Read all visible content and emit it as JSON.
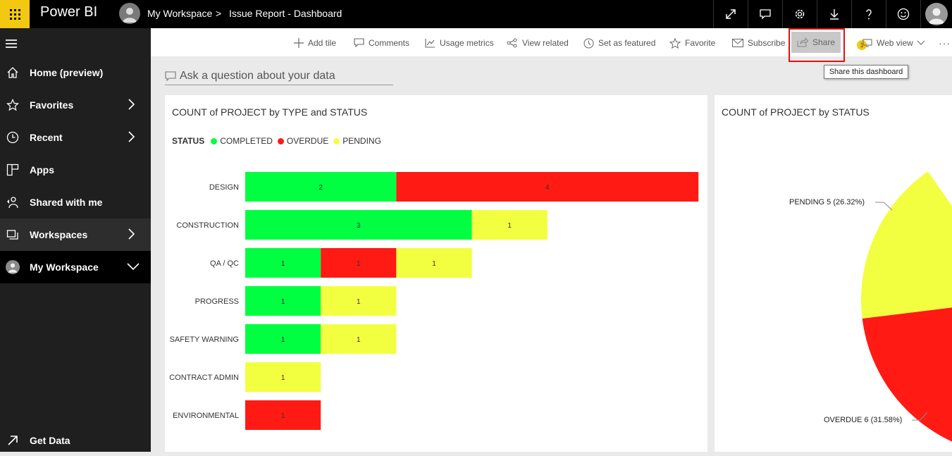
{
  "app": {
    "brand": "Power BI"
  },
  "breadcrumb": {
    "workspace": "My Workspace",
    "separator": ">",
    "page": "Issue Report - Dashboard"
  },
  "sidebar": {
    "items": [
      {
        "label": "Home (preview)",
        "icon": "home-icon"
      },
      {
        "label": "Favorites",
        "icon": "star-icon",
        "chevron": ">"
      },
      {
        "label": "Recent",
        "icon": "clock-icon",
        "chevron": ">"
      },
      {
        "label": "Apps",
        "icon": "apps-icon"
      },
      {
        "label": "Shared with me",
        "icon": "shared-icon"
      },
      {
        "label": "Workspaces",
        "icon": "workspaces-icon",
        "chevron": ">"
      },
      {
        "label": "My Workspace",
        "icon": "avatar-icon",
        "chevron": "v"
      }
    ],
    "get_data": "Get Data"
  },
  "toolbar": {
    "add_tile": "Add tile",
    "comments": "Comments",
    "usage_metrics": "Usage metrics",
    "view_related": "View related",
    "set_as_featured": "Set as featured",
    "favorite": "Favorite",
    "subscribe": "Subscribe",
    "share": "Share",
    "badge": "1",
    "web_view": "Web view",
    "more": "···"
  },
  "tooltip": "Share this dashboard",
  "qna": {
    "placeholder": "Ask a question about your data"
  },
  "colors": {
    "completed": "#00ff40",
    "overdue": "#ff1a14",
    "pending": "#f2ff40",
    "accent": "#f2c811",
    "highlight": "#e21010"
  },
  "chart_data": [
    {
      "type": "bar",
      "title": "COUNT of PROJECT by TYPE and STATUS",
      "legend_title": "STATUS",
      "legend_placement": "top-left",
      "categories": [
        "DESIGN",
        "CONSTRUCTION",
        "QA / QC",
        "PROGRESS",
        "SAFETY WARNING",
        "CONTRACT ADMIN",
        "ENVIRONMENTAL"
      ],
      "series": [
        {
          "name": "COMPLETED",
          "values": [
            2,
            3,
            1,
            1,
            1,
            0,
            0
          ]
        },
        {
          "name": "OVERDUE",
          "values": [
            4,
            0,
            1,
            0,
            0,
            0,
            1
          ]
        },
        {
          "name": "PENDING",
          "values": [
            0,
            1,
            1,
            1,
            1,
            1,
            0
          ]
        }
      ],
      "xlim": [
        0,
        6
      ],
      "stacked": true,
      "grid": false
    },
    {
      "type": "pie",
      "title": "COUNT of PROJECT by STATUS",
      "labels": [
        "PENDING 5 (26.32%)",
        "OVERDUE 6 (31.58%)"
      ],
      "slices": [
        {
          "name": "PENDING",
          "value": 5,
          "percent": 26.32
        },
        {
          "name": "OVERDUE",
          "value": 6,
          "percent": 31.58
        }
      ]
    }
  ]
}
